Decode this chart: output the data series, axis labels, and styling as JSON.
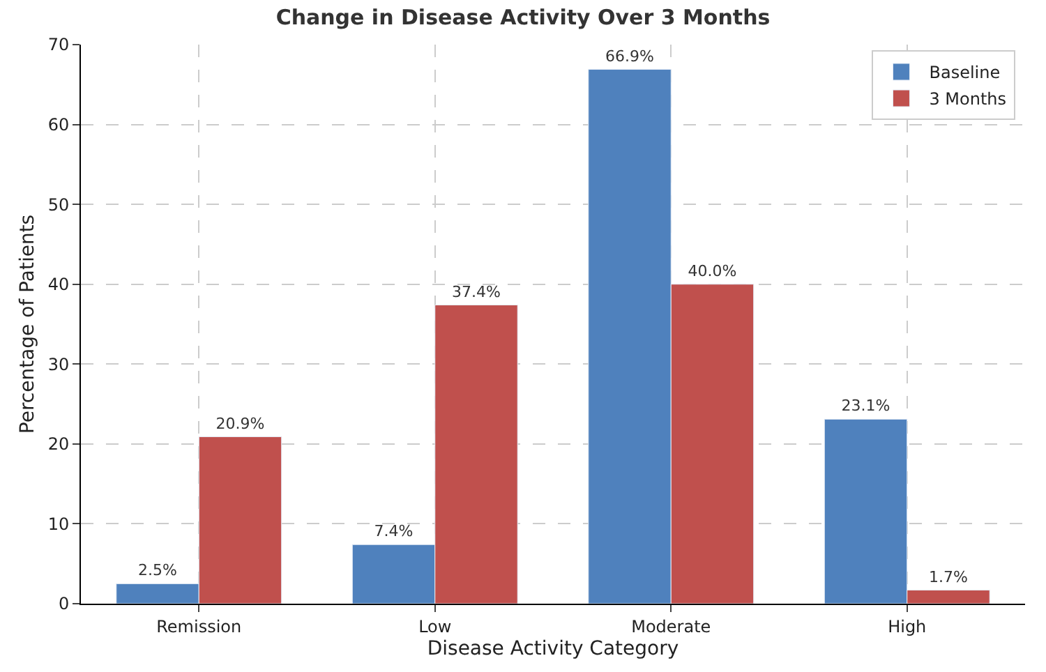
{
  "chart_data": {
    "type": "bar",
    "title": "Change in Disease Activity Over 3 Months",
    "xlabel": "Disease Activity Category",
    "ylabel": "Percentage of Patients",
    "categories": [
      "Remission",
      "Low",
      "Moderate",
      "High"
    ],
    "series": [
      {
        "name": "Baseline",
        "color": "#4f81bd",
        "values": [
          2.5,
          7.4,
          66.9,
          23.1
        ],
        "value_labels": [
          "2.5%",
          "7.4%",
          "66.9%",
          "23.1%"
        ]
      },
      {
        "name": "3 Months",
        "color": "#c0504d",
        "values": [
          20.9,
          37.4,
          40.0,
          1.7
        ],
        "value_labels": [
          "20.9%",
          "37.4%",
          "40.0%",
          "1.7%"
        ]
      }
    ],
    "ylim": [
      0,
      70
    ],
    "yticks": [
      0,
      10,
      20,
      30,
      40,
      50,
      60,
      70
    ],
    "grid": true,
    "legend": "top right"
  }
}
